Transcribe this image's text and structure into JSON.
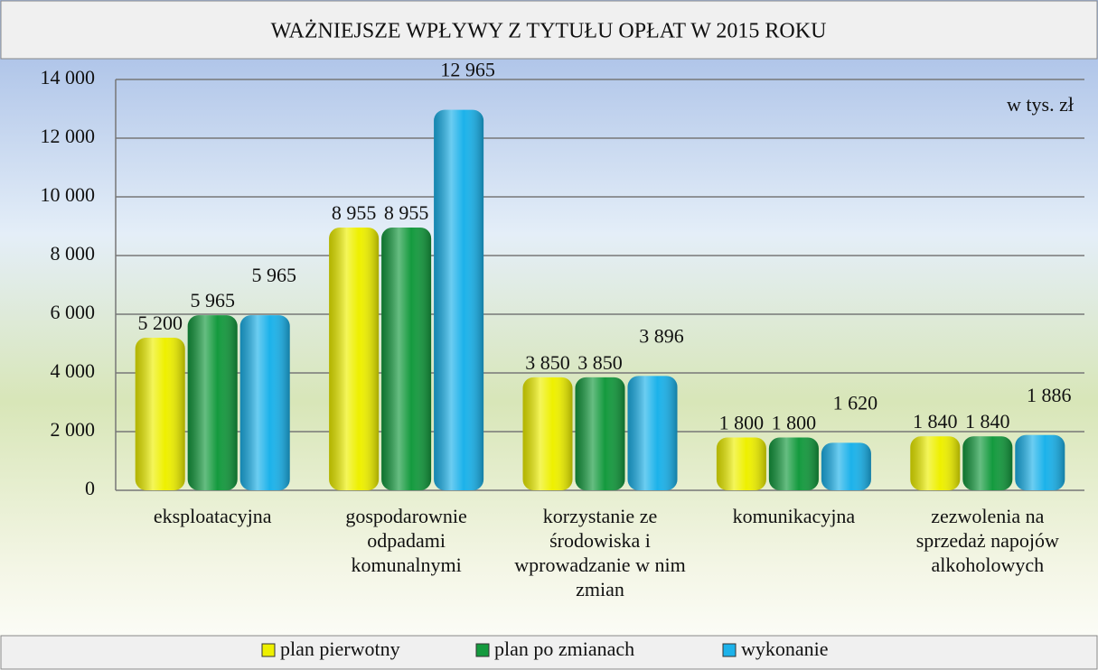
{
  "chart_data": {
    "type": "bar",
    "title": "WAŻNIEJSZE WPŁYWY Z TYTUŁU OPŁAT W 2015 ROKU",
    "annotation": "w tys. zł",
    "categories": [
      "eksploatacyjna",
      "gospodarownie odpadami komunalnymi",
      "korzystanie ze środowiska i wprowadzanie w nim zmian",
      "komunikacyjna",
      "zezwolenia na sprzedaż napojów alkoholowych"
    ],
    "series": [
      {
        "name": "plan pierwotny",
        "color": "#eef000",
        "values": [
          5200,
          8955,
          3850,
          1800,
          1840
        ],
        "value_labels": [
          "5 200",
          "8 955",
          "3 850",
          "1 800",
          "1 840"
        ]
      },
      {
        "name": "plan po zmianach",
        "color": "#149a3e",
        "values": [
          5965,
          8955,
          3850,
          1800,
          1840
        ],
        "value_labels": [
          "5 965",
          "8 955",
          "3 850",
          "1 800",
          "1 840"
        ]
      },
      {
        "name": "wykonanie",
        "color": "#1cb2ea",
        "values": [
          5965,
          12965,
          3896,
          1620,
          1886
        ],
        "value_labels": [
          "5 965",
          "12 965",
          "3 896",
          "1 620",
          "1 886"
        ]
      }
    ],
    "ylim": [
      0,
      14000
    ],
    "yticks": [
      0,
      {
        "value": 2000,
        "label": "2 000"
      },
      {
        "value": 4000,
        "label": "4 000"
      },
      {
        "value": 6000,
        "label": "6 000"
      },
      {
        "value": 8000,
        "label": "8 000"
      },
      {
        "value": 10000,
        "label": "10 000"
      },
      {
        "value": 12000,
        "label": "12 000"
      },
      {
        "value": 14000,
        "label": "14 000"
      }
    ],
    "grid": true
  }
}
